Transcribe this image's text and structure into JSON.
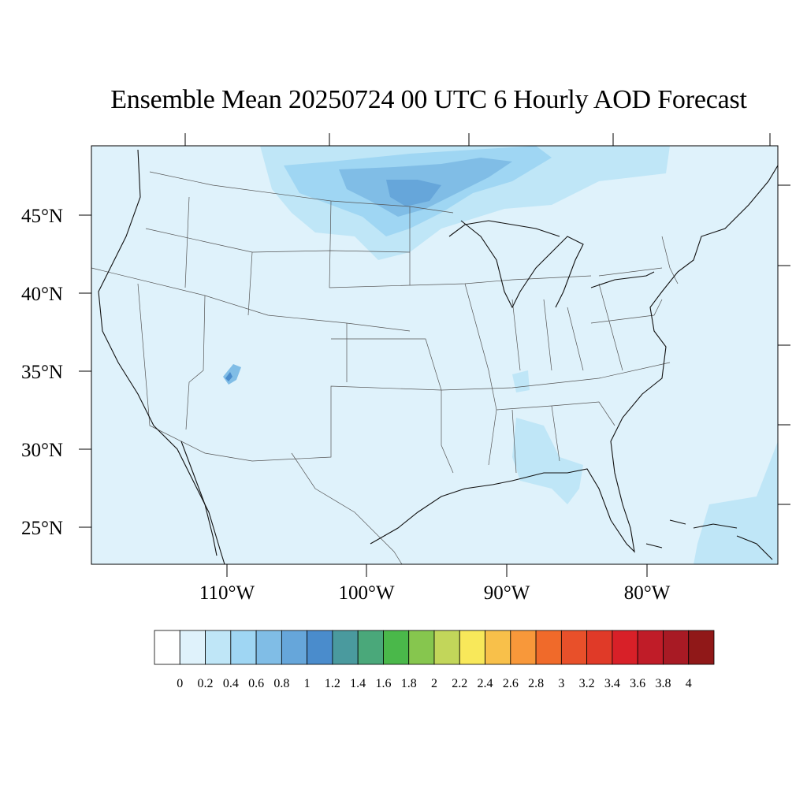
{
  "map": {
    "title": "Ensemble Mean 20250724 00 UTC 6 Hourly AOD Forecast",
    "lat_labels": [
      "45°N",
      "40°N",
      "35°N",
      "30°N",
      "25°N"
    ],
    "lon_labels": [
      "110°W",
      "100°W",
      "90°W",
      "80°W"
    ],
    "background_fill": "#dff2fb"
  },
  "colorbar": {
    "tick_labels": [
      "0",
      "0.2",
      "0.4",
      "0.6",
      "0.8",
      "1",
      "1.2",
      "1.4",
      "1.6",
      "1.8",
      "2",
      "2.2",
      "2.4",
      "2.6",
      "2.8",
      "3",
      "3.2",
      "3.4",
      "3.6",
      "3.8",
      "4"
    ],
    "colors": [
      "#ffffff",
      "#dff2fb",
      "#bfe6f7",
      "#9fd6f3",
      "#80bde6",
      "#66a6da",
      "#4a8ccc",
      "#4a9a9e",
      "#4aa87a",
      "#4ab84a",
      "#86c64e",
      "#c2d65a",
      "#f8e85a",
      "#f8c04a",
      "#f8983a",
      "#f06a2a",
      "#e8502a",
      "#e03a28",
      "#d82028",
      "#c01c28",
      "#a81a24",
      "#901818"
    ]
  }
}
